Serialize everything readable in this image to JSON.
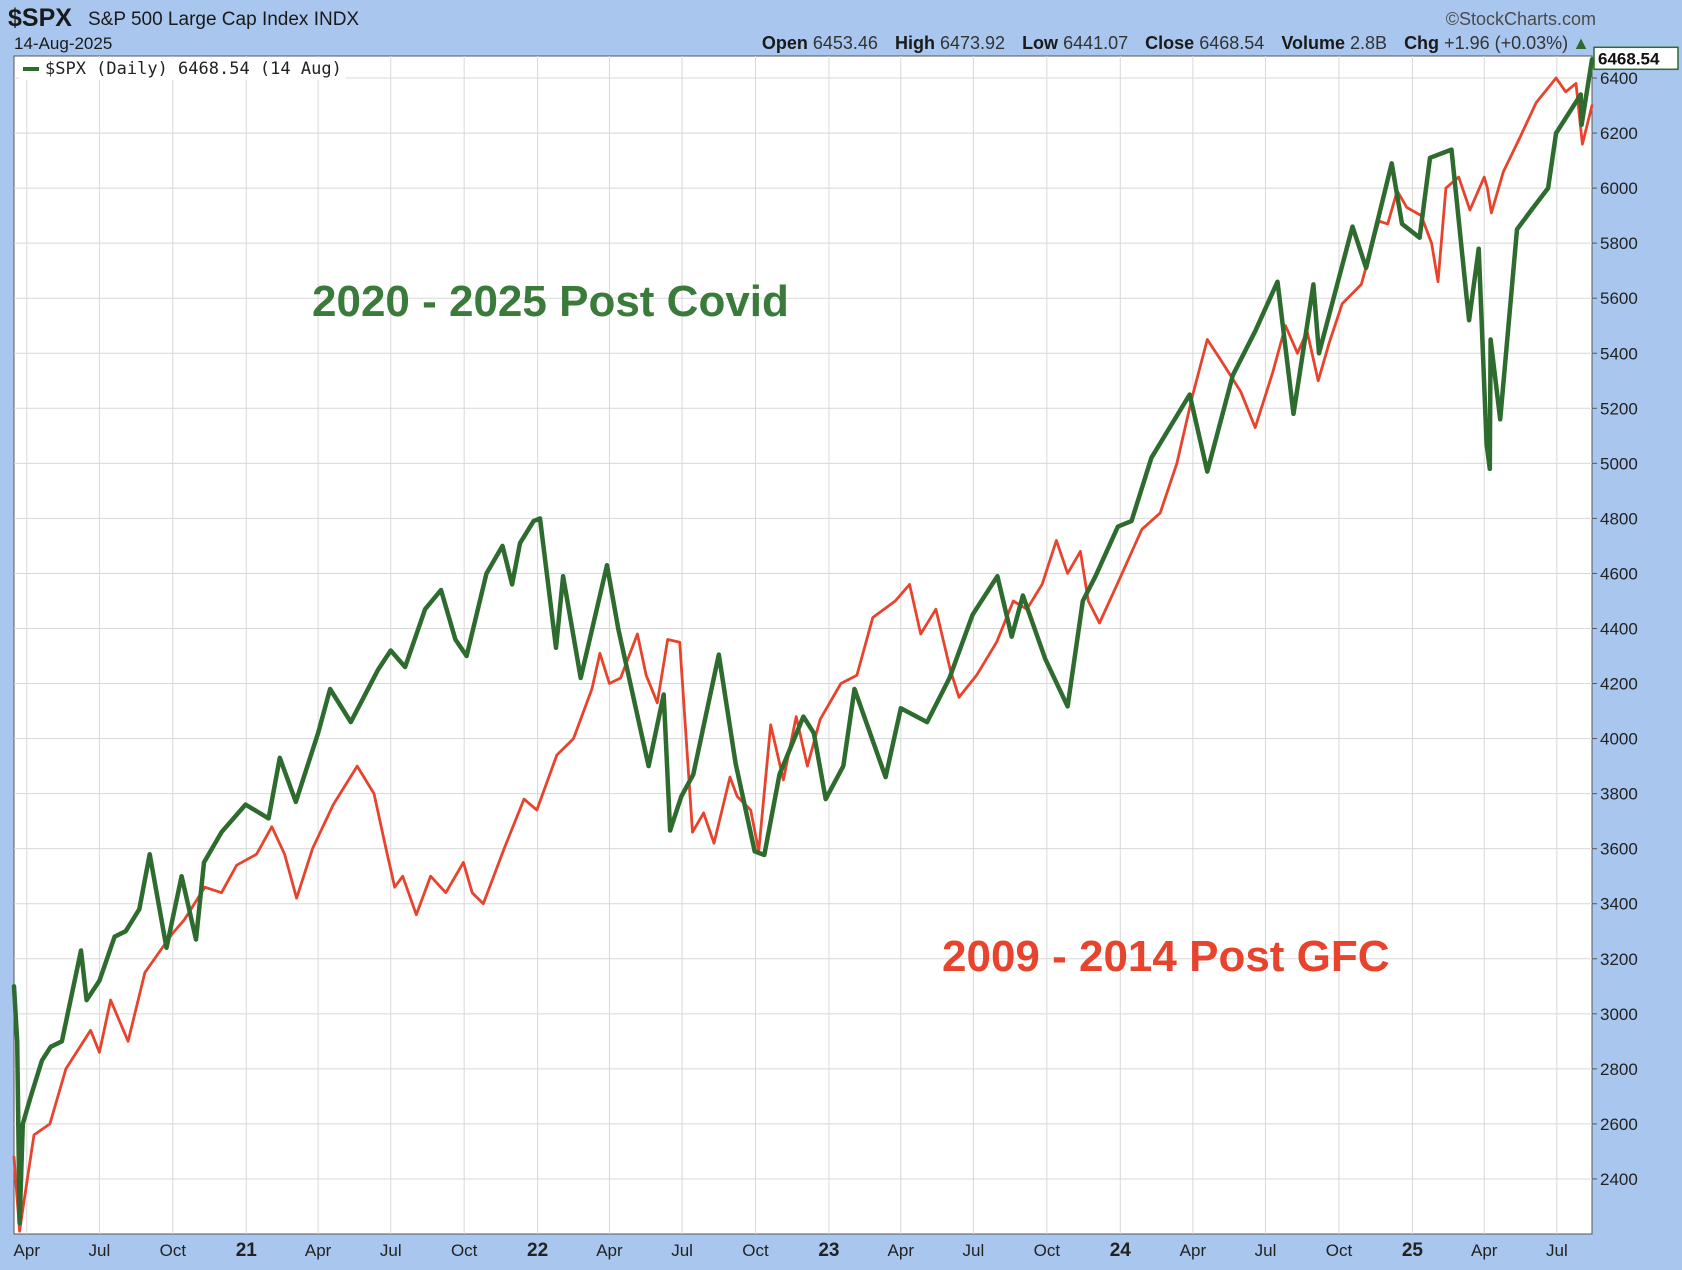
{
  "header": {
    "symbol": "$SPX",
    "name": "S&P 500 Large Cap Index  INDX",
    "date": "14-Aug-2025",
    "brand": "©StockCharts.com",
    "open_label": "Open",
    "open": "6453.46",
    "high_label": "High",
    "high": "6473.92",
    "low_label": "Low",
    "low": "6441.07",
    "close_label": "Close",
    "close": "6468.54",
    "volume_label": "Volume",
    "volume": "2.8B",
    "chg_label": "Chg",
    "chg": "+1.96 (+0.03%)",
    "chg_arrow": "▲"
  },
  "legend": {
    "text": "$SPX (Daily) 6468.54 (14 Aug)"
  },
  "last_value_label": "6468.54",
  "colors": {
    "green": "#2e6b2e",
    "red": "#e8432c",
    "frame": "#a9c7ee",
    "grid": "#d8d8d8"
  },
  "chart_data": {
    "type": "line",
    "ylim": [
      2200,
      6480
    ],
    "y_ticks": [
      2400,
      2600,
      2800,
      3000,
      3200,
      3400,
      3600,
      3800,
      4000,
      4200,
      4400,
      4600,
      4800,
      5000,
      5200,
      5400,
      5600,
      5800,
      6000,
      6200,
      6400
    ],
    "x_range": [
      "2020-03-16",
      "2025-08-14"
    ],
    "x_ticks": [
      {
        "date": "2020-04-01",
        "label": "Apr"
      },
      {
        "date": "2020-07-01",
        "label": "Jul"
      },
      {
        "date": "2020-10-01",
        "label": "Oct"
      },
      {
        "date": "2021-01-01",
        "label": "21"
      },
      {
        "date": "2021-04-01",
        "label": "Apr"
      },
      {
        "date": "2021-07-01",
        "label": "Jul"
      },
      {
        "date": "2021-10-01",
        "label": "Oct"
      },
      {
        "date": "2022-01-01",
        "label": "22"
      },
      {
        "date": "2022-04-01",
        "label": "Apr"
      },
      {
        "date": "2022-07-01",
        "label": "Jul"
      },
      {
        "date": "2022-10-01",
        "label": "Oct"
      },
      {
        "date": "2023-01-01",
        "label": "23"
      },
      {
        "date": "2023-04-01",
        "label": "Apr"
      },
      {
        "date": "2023-07-01",
        "label": "Jul"
      },
      {
        "date": "2023-10-01",
        "label": "Oct"
      },
      {
        "date": "2024-01-01",
        "label": "24"
      },
      {
        "date": "2024-04-01",
        "label": "Apr"
      },
      {
        "date": "2024-07-01",
        "label": "Jul"
      },
      {
        "date": "2024-10-01",
        "label": "Oct"
      },
      {
        "date": "2025-01-01",
        "label": "25"
      },
      {
        "date": "2025-04-01",
        "label": "Apr"
      },
      {
        "date": "2025-07-01",
        "label": "Jul"
      }
    ],
    "annotations": [
      {
        "text": "2020 - 2025 Post Covid",
        "color": "#3a7a3a"
      },
      {
        "text": "2009 - 2014 Post GFC",
        "color": "#e8432c"
      }
    ],
    "series": [
      {
        "name": "$SPX (Daily) 6468.54 (14 Aug)",
        "color": "#2e6b2e",
        "points": [
          [
            "2020-03-16",
            3100
          ],
          [
            "2020-03-20",
            2900
          ],
          [
            "2020-03-23",
            2240
          ],
          [
            "2020-03-27",
            2600
          ],
          [
            "2020-04-06",
            2700
          ],
          [
            "2020-04-20",
            2830
          ],
          [
            "2020-05-01",
            2880
          ],
          [
            "2020-05-15",
            2900
          ],
          [
            "2020-06-08",
            3230
          ],
          [
            "2020-06-15",
            3050
          ],
          [
            "2020-07-01",
            3120
          ],
          [
            "2020-07-20",
            3280
          ],
          [
            "2020-08-03",
            3300
          ],
          [
            "2020-08-20",
            3380
          ],
          [
            "2020-09-02",
            3580
          ],
          [
            "2020-09-23",
            3240
          ],
          [
            "2020-10-12",
            3500
          ],
          [
            "2020-10-30",
            3270
          ],
          [
            "2020-11-09",
            3550
          ],
          [
            "2020-12-01",
            3660
          ],
          [
            "2020-12-31",
            3760
          ],
          [
            "2021-01-29",
            3710
          ],
          [
            "2021-02-12",
            3930
          ],
          [
            "2021-03-04",
            3770
          ],
          [
            "2021-04-01",
            4020
          ],
          [
            "2021-04-16",
            4180
          ],
          [
            "2021-05-12",
            4060
          ],
          [
            "2021-06-15",
            4250
          ],
          [
            "2021-07-01",
            4320
          ],
          [
            "2021-07-19",
            4260
          ],
          [
            "2021-08-13",
            4470
          ],
          [
            "2021-09-02",
            4540
          ],
          [
            "2021-09-20",
            4360
          ],
          [
            "2021-10-04",
            4300
          ],
          [
            "2021-10-29",
            4600
          ],
          [
            "2021-11-18",
            4700
          ],
          [
            "2021-11-30",
            4560
          ],
          [
            "2021-12-10",
            4710
          ],
          [
            "2021-12-27",
            4790
          ],
          [
            "2022-01-04",
            4800
          ],
          [
            "2022-01-24",
            4330
          ],
          [
            "2022-02-02",
            4590
          ],
          [
            "2022-02-24",
            4220
          ],
          [
            "2022-03-29",
            4630
          ],
          [
            "2022-04-12",
            4400
          ],
          [
            "2022-05-20",
            3900
          ],
          [
            "2022-06-08",
            4160
          ],
          [
            "2022-06-16",
            3666
          ],
          [
            "2022-06-30",
            3790
          ],
          [
            "2022-07-15",
            3870
          ],
          [
            "2022-08-16",
            4305
          ],
          [
            "2022-09-06",
            3910
          ],
          [
            "2022-09-30",
            3590
          ],
          [
            "2022-10-12",
            3577
          ],
          [
            "2022-10-31",
            3870
          ],
          [
            "2022-11-30",
            4080
          ],
          [
            "2022-12-13",
            4020
          ],
          [
            "2022-12-28",
            3780
          ],
          [
            "2023-01-19",
            3900
          ],
          [
            "2023-02-02",
            4180
          ],
          [
            "2023-03-13",
            3860
          ],
          [
            "2023-04-01",
            4110
          ],
          [
            "2023-05-04",
            4060
          ],
          [
            "2023-06-01",
            4220
          ],
          [
            "2023-06-30",
            4450
          ],
          [
            "2023-07-31",
            4590
          ],
          [
            "2023-08-18",
            4370
          ],
          [
            "2023-09-01",
            4520
          ],
          [
            "2023-09-29",
            4290
          ],
          [
            "2023-10-27",
            4117
          ],
          [
            "2023-11-15",
            4500
          ],
          [
            "2023-12-01",
            4590
          ],
          [
            "2023-12-29",
            4770
          ],
          [
            "2024-01-15",
            4790
          ],
          [
            "2024-02-09",
            5020
          ],
          [
            "2024-03-28",
            5250
          ],
          [
            "2024-04-19",
            4970
          ],
          [
            "2024-05-21",
            5320
          ],
          [
            "2024-06-18",
            5480
          ],
          [
            "2024-07-16",
            5660
          ],
          [
            "2024-08-05",
            5180
          ],
          [
            "2024-08-30",
            5650
          ],
          [
            "2024-09-06",
            5400
          ],
          [
            "2024-10-18",
            5860
          ],
          [
            "2024-11-04",
            5710
          ],
          [
            "2024-12-06",
            6090
          ],
          [
            "2024-12-19",
            5870
          ],
          [
            "2025-01-10",
            5820
          ],
          [
            "2025-01-23",
            6110
          ],
          [
            "2025-02-19",
            6140
          ],
          [
            "2025-03-10",
            5600
          ],
          [
            "2025-03-13",
            5520
          ],
          [
            "2025-03-25",
            5780
          ],
          [
            "2025-04-04",
            5070
          ],
          [
            "2025-04-08",
            4980
          ],
          [
            "2025-04-09",
            5450
          ],
          [
            "2025-04-21",
            5160
          ],
          [
            "2025-05-12",
            5850
          ],
          [
            "2025-05-30",
            5920
          ],
          [
            "2025-06-20",
            6000
          ],
          [
            "2025-06-30",
            6200
          ],
          [
            "2025-07-31",
            6340
          ],
          [
            "2025-08-01",
            6230
          ],
          [
            "2025-08-14",
            6468
          ]
        ]
      },
      {
        "name": "",
        "color": "#e8432c",
        "points": [
          [
            "2020-03-16",
            2480
          ],
          [
            "2020-03-23",
            2210
          ],
          [
            "2020-03-27",
            2290
          ],
          [
            "2020-04-10",
            2560
          ],
          [
            "2020-04-30",
            2600
          ],
          [
            "2020-05-20",
            2800
          ],
          [
            "2020-06-20",
            2940
          ],
          [
            "2020-07-01",
            2860
          ],
          [
            "2020-07-15",
            3050
          ],
          [
            "2020-08-06",
            2900
          ],
          [
            "2020-08-27",
            3150
          ],
          [
            "2020-09-30",
            3290
          ],
          [
            "2020-10-15",
            3340
          ],
          [
            "2020-11-10",
            3460
          ],
          [
            "2020-12-01",
            3440
          ],
          [
            "2020-12-20",
            3540
          ],
          [
            "2021-01-14",
            3580
          ],
          [
            "2021-02-02",
            3680
          ],
          [
            "2021-02-18",
            3580
          ],
          [
            "2021-03-05",
            3420
          ],
          [
            "2021-03-25",
            3600
          ],
          [
            "2021-04-20",
            3760
          ],
          [
            "2021-05-20",
            3900
          ],
          [
            "2021-06-10",
            3800
          ],
          [
            "2021-06-25",
            3600
          ],
          [
            "2021-07-06",
            3460
          ],
          [
            "2021-07-16",
            3500
          ],
          [
            "2021-08-02",
            3360
          ],
          [
            "2021-08-20",
            3500
          ],
          [
            "2021-09-08",
            3440
          ],
          [
            "2021-09-30",
            3550
          ],
          [
            "2021-10-11",
            3440
          ],
          [
            "2021-10-25",
            3400
          ],
          [
            "2021-11-20",
            3600
          ],
          [
            "2021-12-15",
            3780
          ],
          [
            "2021-12-31",
            3740
          ],
          [
            "2022-01-25",
            3940
          ],
          [
            "2022-02-15",
            4000
          ],
          [
            "2022-03-10",
            4180
          ],
          [
            "2022-03-20",
            4310
          ],
          [
            "2022-04-01",
            4200
          ],
          [
            "2022-04-15",
            4220
          ],
          [
            "2022-05-06",
            4380
          ],
          [
            "2022-05-17",
            4230
          ],
          [
            "2022-05-31",
            4130
          ],
          [
            "2022-06-13",
            4360
          ],
          [
            "2022-06-28",
            4350
          ],
          [
            "2022-07-14",
            3660
          ],
          [
            "2022-07-28",
            3730
          ],
          [
            "2022-08-10",
            3620
          ],
          [
            "2022-08-30",
            3860
          ],
          [
            "2022-09-08",
            3790
          ],
          [
            "2022-09-25",
            3740
          ],
          [
            "2022-10-05",
            3590
          ],
          [
            "2022-10-20",
            4050
          ],
          [
            "2022-11-05",
            3850
          ],
          [
            "2022-11-21",
            4080
          ],
          [
            "2022-12-05",
            3900
          ],
          [
            "2022-12-21",
            4070
          ],
          [
            "2023-01-16",
            4200
          ],
          [
            "2023-02-05",
            4230
          ],
          [
            "2023-02-25",
            4440
          ],
          [
            "2023-03-25",
            4500
          ],
          [
            "2023-04-12",
            4560
          ],
          [
            "2023-04-26",
            4380
          ],
          [
            "2023-05-15",
            4470
          ],
          [
            "2023-06-02",
            4250
          ],
          [
            "2023-06-13",
            4150
          ],
          [
            "2023-07-05",
            4230
          ],
          [
            "2023-07-30",
            4350
          ],
          [
            "2023-08-20",
            4500
          ],
          [
            "2023-09-06",
            4470
          ],
          [
            "2023-09-25",
            4560
          ],
          [
            "2023-10-13",
            4720
          ],
          [
            "2023-10-27",
            4600
          ],
          [
            "2023-11-12",
            4680
          ],
          [
            "2023-11-22",
            4500
          ],
          [
            "2023-12-06",
            4420
          ],
          [
            "2023-12-28",
            4560
          ],
          [
            "2024-01-28",
            4760
          ],
          [
            "2024-02-20",
            4820
          ],
          [
            "2024-03-12",
            5000
          ],
          [
            "2024-03-31",
            5240
          ],
          [
            "2024-04-19",
            5450
          ],
          [
            "2024-05-05",
            5380
          ],
          [
            "2024-05-31",
            5260
          ],
          [
            "2024-06-18",
            5130
          ],
          [
            "2024-07-10",
            5330
          ],
          [
            "2024-07-26",
            5500
          ],
          [
            "2024-08-10",
            5400
          ],
          [
            "2024-08-22",
            5480
          ],
          [
            "2024-09-05",
            5300
          ],
          [
            "2024-09-19",
            5440
          ],
          [
            "2024-10-05",
            5580
          ],
          [
            "2024-10-29",
            5650
          ],
          [
            "2024-11-20",
            5880
          ],
          [
            "2024-12-01",
            5870
          ],
          [
            "2024-12-13",
            5990
          ],
          [
            "2024-12-25",
            5930
          ],
          [
            "2025-01-12",
            5900
          ],
          [
            "2025-01-25",
            5800
          ],
          [
            "2025-02-02",
            5660
          ],
          [
            "2025-02-12",
            6000
          ],
          [
            "2025-02-28",
            6040
          ],
          [
            "2025-03-14",
            5920
          ],
          [
            "2025-04-01",
            6040
          ],
          [
            "2025-04-05",
            6000
          ],
          [
            "2025-04-10",
            5910
          ],
          [
            "2025-04-25",
            6060
          ],
          [
            "2025-05-15",
            6180
          ],
          [
            "2025-06-05",
            6310
          ],
          [
            "2025-06-30",
            6400
          ],
          [
            "2025-07-12",
            6350
          ],
          [
            "2025-07-25",
            6380
          ],
          [
            "2025-08-02",
            6160
          ],
          [
            "2025-08-14",
            6300
          ]
        ]
      }
    ]
  }
}
